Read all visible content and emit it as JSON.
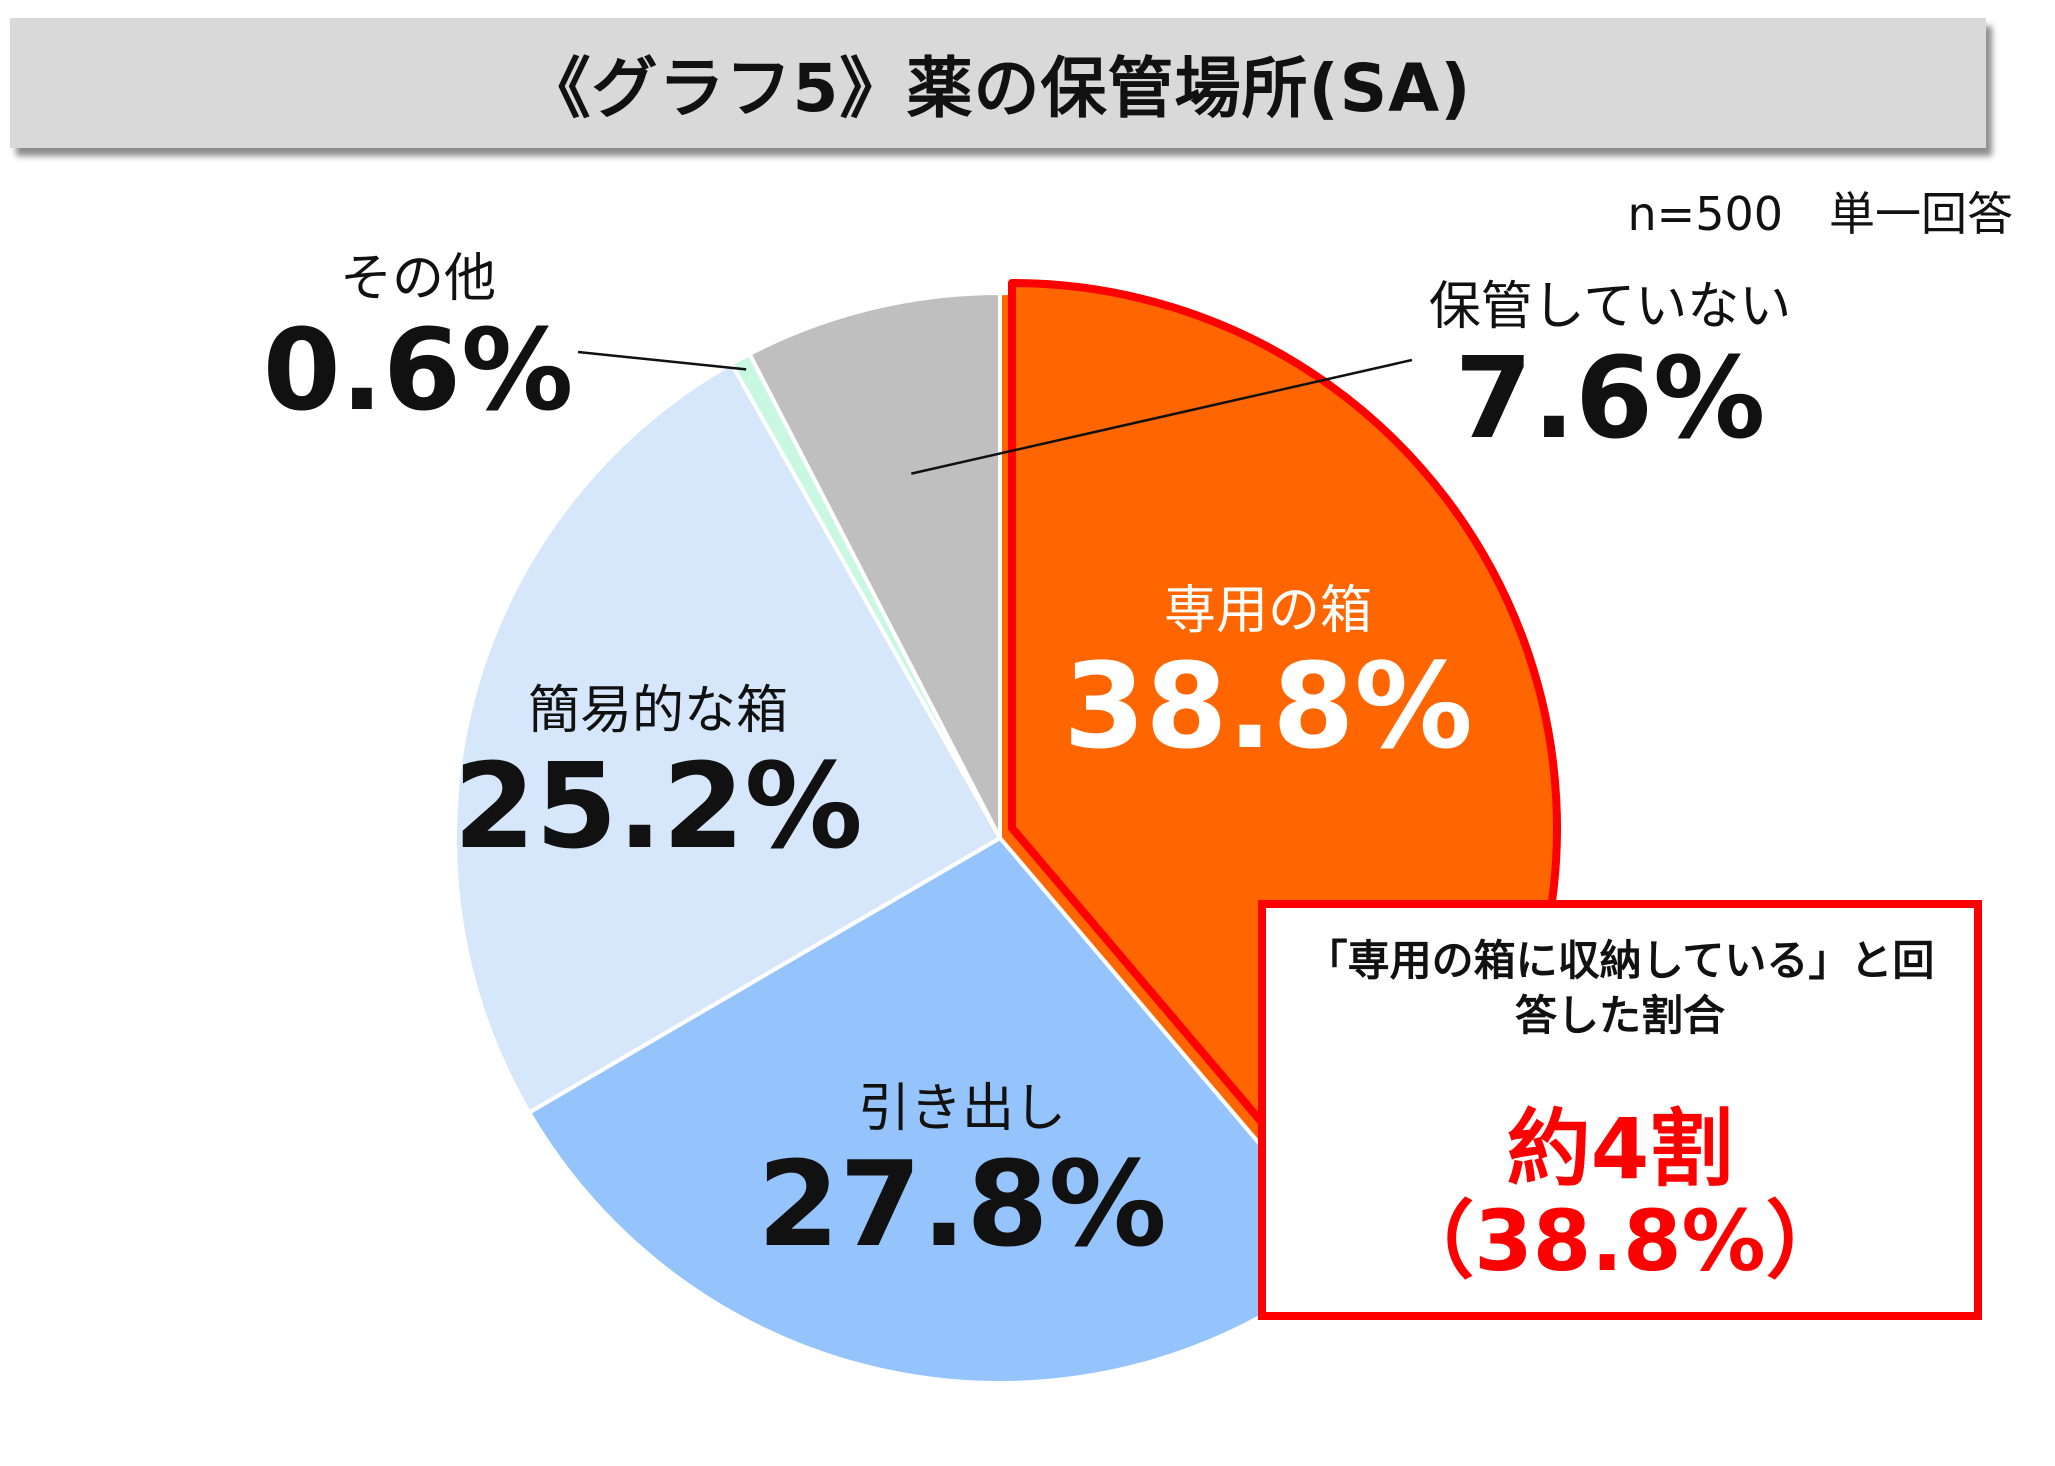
{
  "title": "《グラフ5》薬の保管場所(SA)",
  "sample_note": "n=500　単一回答",
  "chart_data": {
    "type": "pie",
    "title": "《グラフ5》薬の保管場所(SA)",
    "categories": [
      "専用の箱",
      "引き出し",
      "簡易的な箱",
      "その他",
      "保管していない"
    ],
    "values": [
      38.8,
      27.8,
      25.2,
      0.6,
      7.6
    ],
    "colors": [
      "#ff6600",
      "#95c3fb",
      "#d6e7fc",
      "#c8f7e2",
      "#bfbfbf"
    ],
    "unit": "%",
    "start_angle": "12 o'clock",
    "direction": "clockwise",
    "highlight": {
      "category": "専用の箱",
      "outline_color": "#ff0000"
    },
    "labels": {
      "専用の箱": {
        "category": "専用の箱",
        "value": "38.8%"
      },
      "引き出し": {
        "category": "引き出し",
        "value": "27.8%"
      },
      "簡易的な箱": {
        "category": "簡易的な箱",
        "value": "25.2%"
      },
      "その他": {
        "category": "その他",
        "value": "0.6%"
      },
      "保管していない": {
        "category": "保管していない",
        "value": "7.6%"
      }
    }
  },
  "callout": {
    "text": "「専用の箱に収納している」と回答した割合",
    "big": "約4割",
    "pct": "（38.8%）"
  }
}
